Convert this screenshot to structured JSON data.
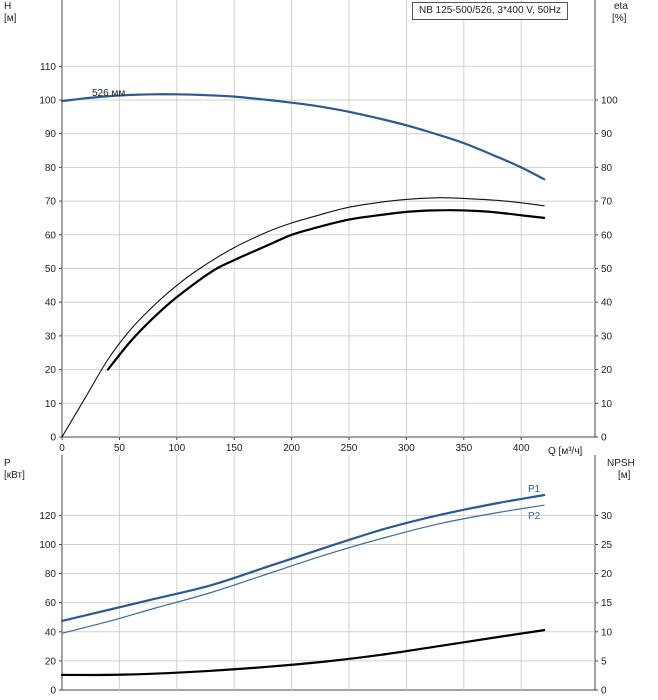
{
  "legend": "NB 125-500/526, 3*400 V, 50Hz",
  "curve_label": "526 мм",
  "chart_data": [
    {
      "type": "line",
      "x_label": "Q [м³/ч]",
      "xlim": [
        0,
        450
      ],
      "x_ticks": [
        0,
        50,
        100,
        150,
        200,
        250,
        300,
        350,
        400
      ],
      "left_axis": {
        "label_top": "H",
        "label_unit": "[м]",
        "ticks": [
          0,
          10,
          20,
          30,
          40,
          50,
          60,
          70,
          80,
          90,
          100,
          110
        ],
        "ylim": [
          0,
          120
        ]
      },
      "right_axis": {
        "label_top": "eta",
        "label_unit": "[%]",
        "ticks": [
          0,
          10,
          20,
          30,
          40,
          50,
          60,
          70,
          80,
          90,
          100
        ],
        "ylim": [
          0,
          120
        ]
      },
      "grid": true,
      "series": [
        {
          "axis": "left",
          "color": "#2a5a90",
          "width": 2.2,
          "x": [
            0,
            20,
            40,
            60,
            80,
            100,
            120,
            150,
            180,
            200,
            220,
            250,
            280,
            300,
            320,
            350,
            380,
            400,
            420
          ],
          "y": [
            99.7,
            100.5,
            101.1,
            101.5,
            101.7,
            101.7,
            101.5,
            101.0,
            100.0,
            99.2,
            98.3,
            96.5,
            94.2,
            92.5,
            90.5,
            87.2,
            83.0,
            80.0,
            76.5
          ]
        },
        {
          "axis": "right",
          "color": "#111111",
          "width": 1.1,
          "x": [
            0,
            20,
            40,
            60,
            80,
            100,
            120,
            150,
            180,
            200,
            220,
            250,
            280,
            300,
            320,
            330,
            350,
            380,
            400,
            420
          ],
          "y": [
            0,
            11.5,
            23.0,
            32.0,
            39.0,
            45.0,
            50.0,
            56.2,
            61.0,
            63.5,
            65.5,
            68.2,
            69.8,
            70.5,
            70.9,
            71.0,
            70.8,
            70.2,
            69.5,
            68.6
          ]
        },
        {
          "axis": "right",
          "color": "#000000",
          "width": 2.2,
          "x": [
            40,
            60,
            80,
            100,
            130,
            150,
            180,
            200,
            220,
            250,
            280,
            300,
            320,
            340,
            360,
            380,
            400,
            420
          ],
          "y": [
            20,
            28.5,
            35.5,
            41.5,
            49.0,
            52.5,
            57.0,
            60.0,
            62.0,
            64.5,
            66.0,
            66.8,
            67.2,
            67.3,
            67.1,
            66.6,
            65.8,
            65.0
          ]
        }
      ]
    },
    {
      "type": "line",
      "xlim": [
        0,
        450
      ],
      "left_axis": {
        "label_top": "P",
        "label_unit": "[кВт]",
        "ticks": [
          0,
          20,
          40,
          60,
          80,
          100,
          120
        ],
        "ylim": [
          0,
          142
        ]
      },
      "right_axis": {
        "label_top": "NPSH",
        "label_unit": "[м]",
        "ticks": [
          0,
          5,
          10,
          15,
          20,
          25,
          30
        ],
        "ylim": [
          0,
          35.5
        ]
      },
      "grid": true,
      "series": [
        {
          "name": "P1",
          "axis": "left",
          "color": "#2a5a90",
          "width": 2.2,
          "x": [
            0,
            40,
            80,
            130,
            180,
            230,
            280,
            330,
            380,
            420
          ],
          "y": [
            47.5,
            55,
            62.5,
            72,
            85,
            98,
            110.5,
            120.5,
            128.5,
            134
          ]
        },
        {
          "name": "P2",
          "axis": "left",
          "color": "#3b6aa3",
          "width": 1.2,
          "x": [
            0,
            40,
            80,
            130,
            180,
            230,
            280,
            330,
            380,
            420
          ],
          "y": [
            39,
            47,
            56,
            67,
            80,
            93,
            104.5,
            114.5,
            122,
            127
          ]
        },
        {
          "axis": "right",
          "color": "#000000",
          "width": 2.2,
          "x": [
            0,
            40,
            80,
            130,
            180,
            230,
            280,
            330,
            380,
            420
          ],
          "y": [
            2.6,
            2.6,
            2.8,
            3.3,
            4.0,
            4.9,
            6.1,
            7.6,
            9.1,
            10.3
          ]
        }
      ]
    }
  ]
}
